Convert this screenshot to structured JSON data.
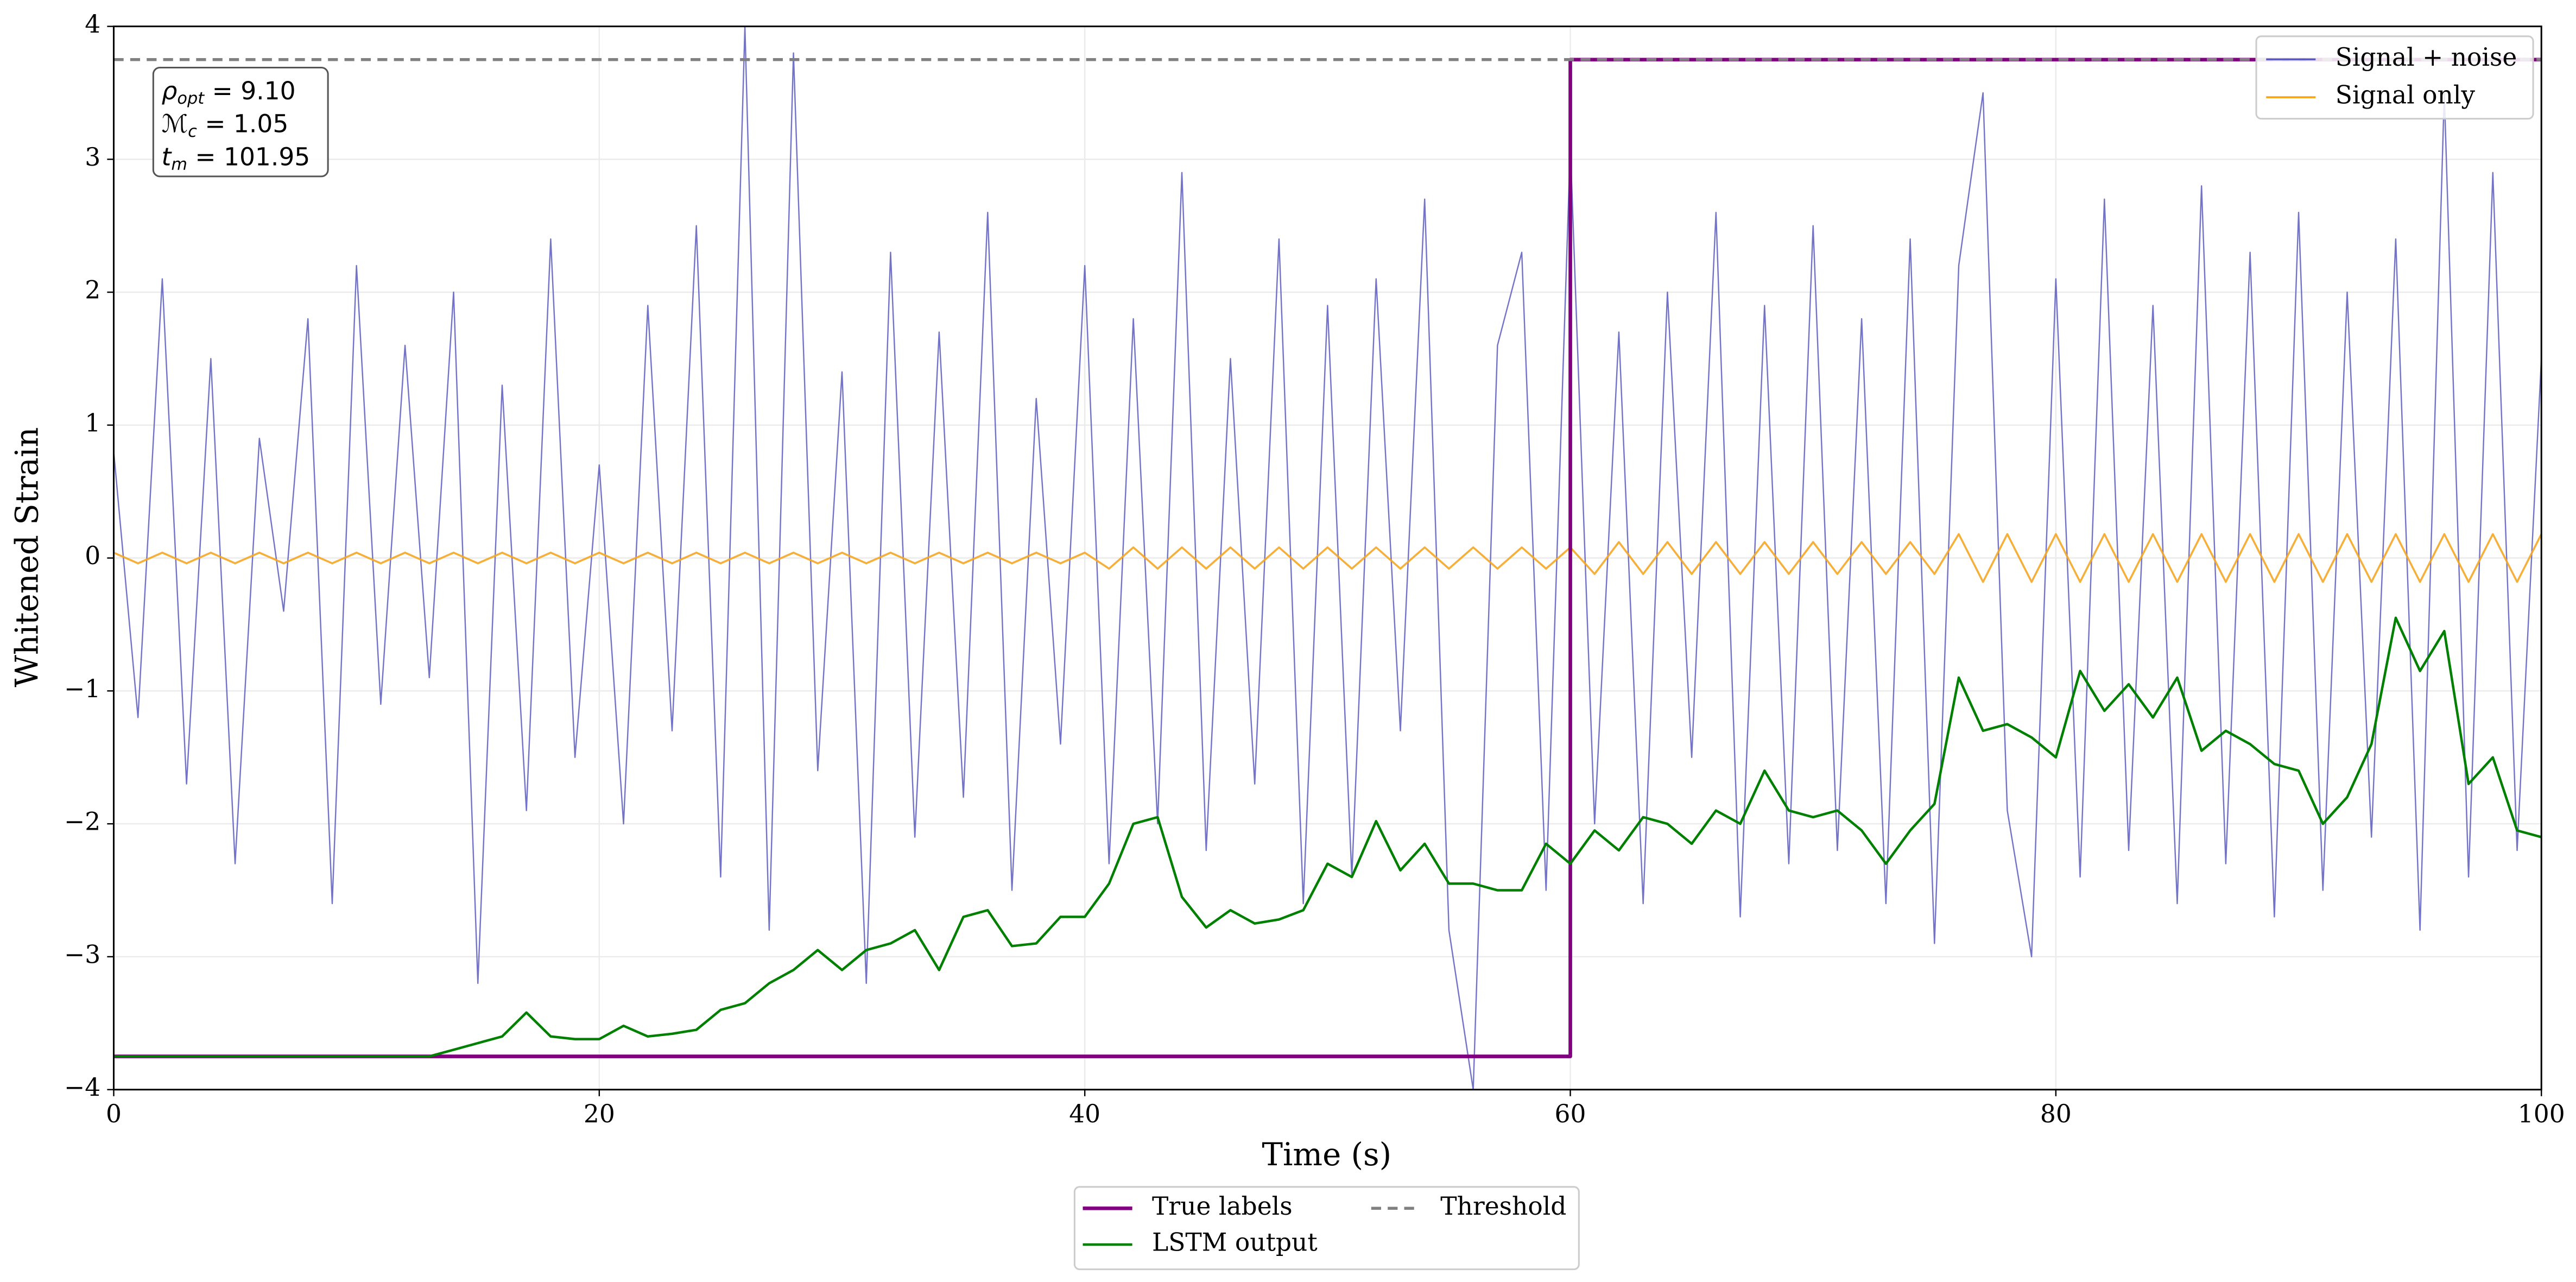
{
  "chart_data": {
    "type": "line",
    "x_label": "Time (s)",
    "y_label": "Whitened Strain",
    "xlim": [
      0,
      100
    ],
    "ylim": [
      -4,
      4
    ],
    "xticks": [
      0,
      20,
      40,
      60,
      80,
      100
    ],
    "yticks": [
      {
        "value": -4,
        "label": "−4"
      },
      {
        "value": -3,
        "label": "−3"
      },
      {
        "value": -2,
        "label": "−2"
      },
      {
        "value": -1,
        "label": "−1"
      },
      0,
      1,
      2,
      3,
      4
    ],
    "grid": true,
    "x": [
      0,
      1,
      2,
      3,
      4,
      5,
      6,
      7,
      8,
      9,
      10,
      11,
      12,
      13,
      14,
      15,
      16,
      17,
      18,
      19,
      20,
      21,
      22,
      23,
      24,
      25,
      26,
      27,
      28,
      29,
      30,
      31,
      32,
      33,
      34,
      35,
      36,
      37,
      38,
      39,
      40,
      41,
      42,
      43,
      44,
      45,
      46,
      47,
      48,
      49,
      50,
      51,
      52,
      53,
      54,
      55,
      56,
      57,
      58,
      59,
      60,
      61,
      62,
      63,
      64,
      65,
      66,
      67,
      68,
      69,
      70,
      71,
      72,
      73,
      74,
      75,
      76,
      77,
      78,
      79,
      80,
      81,
      82,
      83,
      84,
      85,
      86,
      87,
      88,
      89,
      90,
      91,
      92,
      93,
      94,
      95,
      96,
      97,
      98,
      99,
      100
    ],
    "annotation": [
      {
        "symbol": "ρ",
        "sub": "opt",
        "rest": " = 9.10"
      },
      {
        "symbol": "ℳ",
        "sub": "c",
        "rest": " = 1.05"
      },
      {
        "symbol": "t",
        "sub": "m",
        "rest": " = 101.95"
      }
    ],
    "series": [
      {
        "name": "Signal + noise",
        "color": "#5b5bbd",
        "width": 0.8,
        "opacity": 0.85,
        "legend": "upper right",
        "values": [
          0.8,
          -1.2,
          2.1,
          -1.7,
          1.5,
          -2.3,
          0.9,
          -0.4,
          1.8,
          -2.6,
          2.2,
          -1.1,
          1.6,
          -0.9,
          2.0,
          -3.2,
          1.3,
          -1.9,
          2.4,
          -1.5,
          0.7,
          -2.0,
          1.9,
          -1.3,
          2.5,
          -2.4,
          4.0,
          -2.8,
          3.8,
          -1.6,
          1.4,
          -3.2,
          2.3,
          -2.1,
          1.7,
          -1.8,
          2.6,
          -2.5,
          1.2,
          -1.4,
          2.2,
          -2.3,
          1.8,
          -2.0,
          2.9,
          -2.2,
          1.5,
          -1.7,
          2.4,
          -2.6,
          1.9,
          -2.4,
          2.1,
          -1.3,
          2.7,
          -2.8,
          -4.0,
          1.6,
          2.3,
          -2.5,
          3.1,
          -2.0,
          1.7,
          -2.6,
          2.0,
          -1.5,
          2.6,
          -2.7,
          1.9,
          -2.3,
          2.5,
          -2.2,
          1.8,
          -2.6,
          2.4,
          -2.9,
          2.2,
          3.5,
          -1.9,
          -3.0,
          2.1,
          -2.4,
          2.7,
          -2.2,
          1.9,
          -2.6,
          2.8,
          -2.3,
          2.3,
          -2.7,
          2.6,
          -2.5,
          2.0,
          -2.1,
          2.4,
          -2.8,
          3.5,
          -2.4,
          2.9,
          -2.2,
          1.5
        ]
      },
      {
        "name": "Signal only",
        "color": "#f5a623",
        "width": 1.2,
        "opacity": 0.9,
        "legend": "upper right",
        "values": [
          0.04,
          -0.04,
          0.04,
          -0.04,
          0.04,
          -0.04,
          0.04,
          -0.04,
          0.04,
          -0.04,
          0.04,
          -0.04,
          0.04,
          -0.04,
          0.04,
          -0.04,
          0.04,
          -0.04,
          0.04,
          -0.04,
          0.04,
          -0.04,
          0.04,
          -0.04,
          0.04,
          -0.04,
          0.04,
          -0.04,
          0.04,
          -0.04,
          0.04,
          -0.04,
          0.04,
          -0.04,
          0.04,
          -0.04,
          0.04,
          -0.04,
          0.04,
          -0.04,
          0.04,
          -0.08,
          0.08,
          -0.08,
          0.08,
          -0.08,
          0.08,
          -0.08,
          0.08,
          -0.08,
          0.08,
          -0.08,
          0.08,
          -0.08,
          0.08,
          -0.08,
          0.08,
          -0.08,
          0.08,
          -0.08,
          0.08,
          -0.12,
          0.12,
          -0.12,
          0.12,
          -0.12,
          0.12,
          -0.12,
          0.12,
          -0.12,
          0.12,
          -0.12,
          0.12,
          -0.12,
          0.12,
          -0.12,
          0.18,
          -0.18,
          0.18,
          -0.18,
          0.18,
          -0.18,
          0.18,
          -0.18,
          0.18,
          -0.18,
          0.18,
          -0.18,
          0.18,
          -0.18,
          0.18,
          -0.18,
          0.18,
          -0.18,
          0.18,
          -0.18,
          0.18,
          -0.18,
          0.18,
          -0.18,
          0.18
        ]
      },
      {
        "name": "True labels",
        "color": "#800080",
        "width": 2.2,
        "legend": "below",
        "x": [
          0,
          60,
          60,
          100
        ],
        "values": [
          -3.75,
          -3.75,
          3.75,
          3.75
        ]
      },
      {
        "name": "LSTM output",
        "color": "#008000",
        "width": 1.5,
        "legend": "below",
        "values": [
          -3.75,
          -3.75,
          -3.75,
          -3.75,
          -3.75,
          -3.75,
          -3.75,
          -3.75,
          -3.75,
          -3.75,
          -3.75,
          -3.75,
          -3.75,
          -3.75,
          -3.7,
          -3.65,
          -3.6,
          -3.42,
          -3.6,
          -3.62,
          -3.62,
          -3.52,
          -3.6,
          -3.58,
          -3.55,
          -3.4,
          -3.35,
          -3.2,
          -3.1,
          -2.95,
          -3.1,
          -2.95,
          -2.9,
          -2.8,
          -3.1,
          -2.7,
          -2.65,
          -2.92,
          -2.9,
          -2.7,
          -2.7,
          -2.45,
          -2.0,
          -1.95,
          -2.55,
          -2.78,
          -2.65,
          -2.75,
          -2.72,
          -2.65,
          -2.3,
          -2.4,
          -1.98,
          -2.35,
          -2.15,
          -2.45,
          -2.45,
          -2.5,
          -2.5,
          -2.15,
          -2.3,
          -2.05,
          -2.2,
          -1.95,
          -2.0,
          -2.15,
          -1.9,
          -2.0,
          -1.6,
          -1.9,
          -1.95,
          -1.9,
          -2.05,
          -2.3,
          -2.05,
          -1.85,
          -0.9,
          -1.3,
          -1.25,
          -1.35,
          -1.5,
          -0.85,
          -1.15,
          -0.95,
          -1.2,
          -0.9,
          -1.45,
          -1.3,
          -1.4,
          -1.55,
          -1.6,
          -2.0,
          -1.8,
          -1.4,
          -0.45,
          -0.85,
          -0.55,
          -1.7,
          -1.5,
          -2.05,
          -2.1
        ]
      },
      {
        "name": "Threshold",
        "color": "#808080",
        "width": 1.8,
        "dash": true,
        "legend": "below",
        "x": [
          0,
          100
        ],
        "values": [
          3.75,
          3.75
        ]
      }
    ]
  }
}
